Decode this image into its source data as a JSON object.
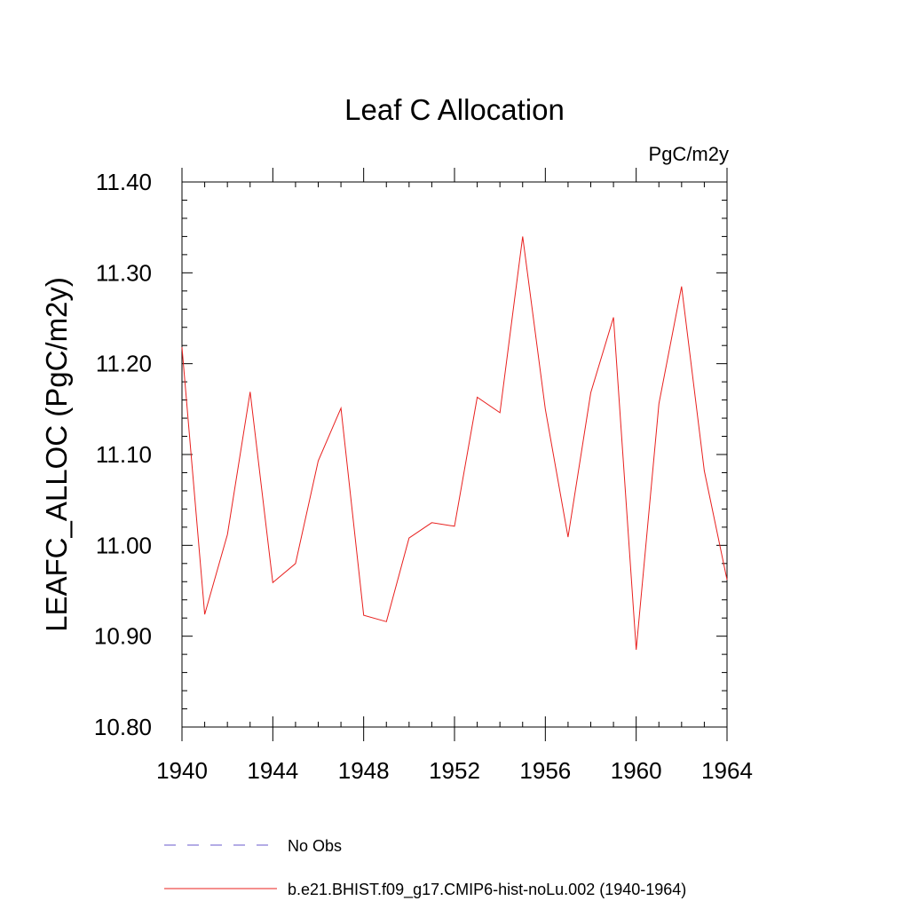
{
  "chart_data": {
    "type": "line",
    "title": "Leaf C Allocation",
    "units": "PgC/m2y",
    "xlabel": "",
    "ylabel": "LEAFC_ALLOC  (PgC/m2y)",
    "xlim": [
      1940,
      1964
    ],
    "ylim": [
      10.8,
      11.4
    ],
    "x_ticks": [
      1940,
      1944,
      1948,
      1952,
      1956,
      1960,
      1964
    ],
    "x_tick_labels": [
      "1940",
      "1944",
      "1948",
      "1952",
      "1956",
      "1960",
      "1964"
    ],
    "y_ticks": [
      10.8,
      10.9,
      11.0,
      11.1,
      11.2,
      11.3,
      11.4
    ],
    "y_tick_labels": [
      "10.80",
      "10.90",
      "11.00",
      "11.10",
      "11.20",
      "11.30",
      "11.40"
    ],
    "grid": false,
    "legend_position": "bottom",
    "legend": [
      {
        "label": "No Obs",
        "color": "#6a5acd",
        "style": "dashed"
      },
      {
        "label": "b.e21.BHIST.f09_g17.CMIP6-hist-noLu.002 (1940-1964)",
        "color": "#e8201e",
        "style": "solid"
      }
    ],
    "series": [
      {
        "name": "b.e21.BHIST.f09_g17.CMIP6-hist-noLu.002 (1940-1964)",
        "color": "#e8201e",
        "x": [
          1940,
          1941,
          1942,
          1943,
          1944,
          1945,
          1946,
          1947,
          1948,
          1949,
          1950,
          1951,
          1952,
          1953,
          1954,
          1955,
          1956,
          1957,
          1958,
          1959,
          1960,
          1961,
          1962,
          1963,
          1964
        ],
        "values": [
          11.218,
          10.924,
          11.012,
          11.169,
          10.959,
          10.98,
          11.093,
          11.151,
          10.923,
          10.916,
          11.008,
          11.025,
          11.021,
          11.163,
          11.146,
          11.34,
          11.15,
          11.009,
          11.168,
          11.251,
          10.885,
          11.156,
          11.285,
          11.082,
          10.962
        ]
      }
    ]
  }
}
